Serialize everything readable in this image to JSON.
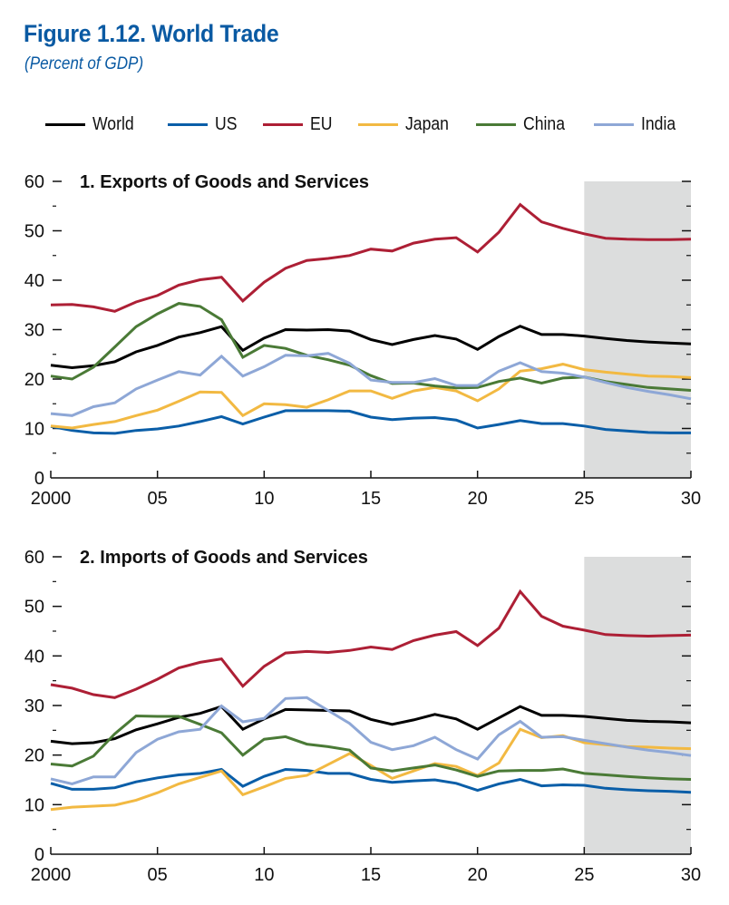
{
  "figure": {
    "title": "Figure 1.12.  World Trade",
    "subtitle": "(Percent of GDP)"
  },
  "legend": [
    {
      "name": "World",
      "color": "#000000"
    },
    {
      "name": "US",
      "color": "#0a5ea8"
    },
    {
      "name": "EU",
      "color": "#ad1f35"
    },
    {
      "name": "Japan",
      "color": "#f2b942"
    },
    {
      "name": "China",
      "color": "#4a7a36"
    },
    {
      "name": "India",
      "color": "#8ea7d6"
    }
  ],
  "projection_shade_color": "#dcdddd",
  "chart_data": [
    {
      "type": "line",
      "title": "1. Exports of Goods and Services",
      "xlabel": "",
      "ylabel": "Percent of GDP",
      "x": [
        2000,
        2001,
        2002,
        2003,
        2004,
        2005,
        2006,
        2007,
        2008,
        2009,
        2010,
        2011,
        2012,
        2013,
        2014,
        2015,
        2016,
        2017,
        2018,
        2019,
        2020,
        2021,
        2022,
        2023,
        2024,
        2025,
        2026,
        2027,
        2028,
        2029,
        2030
      ],
      "xlim": [
        2000,
        2030
      ],
      "ylim": [
        0,
        60
      ],
      "x_ticks": [
        2000,
        2005,
        2010,
        2015,
        2020,
        2025,
        2030
      ],
      "x_tick_labels": [
        "2000",
        "05",
        "10",
        "15",
        "20",
        "25",
        "30"
      ],
      "y_ticks": [
        0,
        10,
        20,
        30,
        40,
        50,
        60
      ],
      "y_tick_labels": [
        "0",
        "10",
        "20",
        "30",
        "40",
        "50",
        "60"
      ],
      "y_minor_ticks": [
        5,
        15,
        25,
        35,
        45,
        55
      ],
      "shaded_range": [
        2025,
        2030
      ],
      "grid": false,
      "legend_position": "top",
      "series": [
        {
          "name": "World",
          "color": "#000000",
          "values": [
            22.8,
            22.3,
            22.7,
            23.5,
            25.5,
            26.8,
            28.5,
            29.4,
            30.6,
            25.8,
            28.3,
            30.0,
            29.9,
            30.0,
            29.7,
            28.0,
            27.0,
            28.0,
            28.8,
            28.1,
            26.0,
            28.6,
            30.7,
            29.0,
            29.0,
            28.7,
            28.2,
            27.8,
            27.5,
            27.3,
            27.1
          ]
        },
        {
          "name": "US",
          "color": "#0a5ea8",
          "values": [
            10.4,
            9.6,
            9.1,
            9.0,
            9.6,
            9.9,
            10.5,
            11.4,
            12.4,
            10.9,
            12.3,
            13.6,
            13.6,
            13.6,
            13.5,
            12.3,
            11.8,
            12.1,
            12.2,
            11.7,
            10.1,
            10.8,
            11.6,
            11.0,
            11.0,
            10.5,
            9.8,
            9.5,
            9.2,
            9.1,
            9.1
          ]
        },
        {
          "name": "EU",
          "color": "#ad1f35",
          "values": [
            35.0,
            35.1,
            34.6,
            33.7,
            35.6,
            36.9,
            39.0,
            40.1,
            40.6,
            35.8,
            39.6,
            42.4,
            44.0,
            44.4,
            45.0,
            46.3,
            45.9,
            47.5,
            48.3,
            48.6,
            45.7,
            49.7,
            55.3,
            51.8,
            50.5,
            49.4,
            48.5,
            48.3,
            48.2,
            48.2,
            48.3
          ]
        },
        {
          "name": "Japan",
          "color": "#f2b942",
          "values": [
            10.5,
            10.1,
            10.8,
            11.4,
            12.6,
            13.7,
            15.5,
            17.4,
            17.3,
            12.6,
            15.0,
            14.8,
            14.3,
            15.8,
            17.6,
            17.6,
            16.1,
            17.6,
            18.3,
            17.6,
            15.6,
            18.0,
            21.6,
            22.1,
            23.0,
            21.9,
            21.4,
            21.0,
            20.6,
            20.5,
            20.3
          ]
        },
        {
          "name": "China",
          "color": "#4a7a36",
          "values": [
            20.6,
            20.0,
            22.4,
            26.5,
            30.6,
            33.2,
            35.3,
            34.7,
            32.0,
            24.4,
            26.8,
            26.2,
            24.8,
            23.9,
            22.8,
            20.7,
            19.1,
            19.2,
            18.6,
            18.2,
            18.3,
            19.5,
            20.2,
            19.2,
            20.2,
            20.4,
            19.5,
            18.9,
            18.3,
            18.0,
            17.7
          ]
        },
        {
          "name": "India",
          "color": "#8ea7d6",
          "values": [
            13.0,
            12.6,
            14.4,
            15.2,
            18.0,
            19.8,
            21.5,
            20.8,
            24.6,
            20.6,
            22.5,
            24.8,
            24.7,
            25.2,
            23.2,
            19.8,
            19.3,
            19.3,
            20.1,
            18.7,
            18.7,
            21.6,
            23.3,
            21.5,
            21.2,
            20.4,
            19.3,
            18.3,
            17.5,
            16.8,
            16.0
          ]
        }
      ]
    },
    {
      "type": "line",
      "title": "2. Imports of Goods and Services",
      "xlabel": "",
      "ylabel": "Percent of GDP",
      "x": [
        2000,
        2001,
        2002,
        2003,
        2004,
        2005,
        2006,
        2007,
        2008,
        2009,
        2010,
        2011,
        2012,
        2013,
        2014,
        2015,
        2016,
        2017,
        2018,
        2019,
        2020,
        2021,
        2022,
        2023,
        2024,
        2025,
        2026,
        2027,
        2028,
        2029,
        2030
      ],
      "xlim": [
        2000,
        2030
      ],
      "ylim": [
        0,
        60
      ],
      "x_ticks": [
        2000,
        2005,
        2010,
        2015,
        2020,
        2025,
        2030
      ],
      "x_tick_labels": [
        "2000",
        "05",
        "10",
        "15",
        "20",
        "25",
        "30"
      ],
      "y_ticks": [
        0,
        10,
        20,
        30,
        40,
        50,
        60
      ],
      "y_tick_labels": [
        "0",
        "10",
        "20",
        "30",
        "40",
        "50",
        "60"
      ],
      "y_minor_ticks": [
        5,
        15,
        25,
        35,
        45,
        55
      ],
      "shaded_range": [
        2025,
        2030
      ],
      "grid": false,
      "legend_position": "top",
      "series": [
        {
          "name": "World",
          "color": "#000000",
          "values": [
            22.8,
            22.3,
            22.5,
            23.3,
            25.1,
            26.3,
            27.6,
            28.4,
            29.8,
            25.2,
            27.3,
            29.2,
            29.1,
            29.0,
            28.9,
            27.2,
            26.2,
            27.1,
            28.2,
            27.3,
            25.2,
            27.5,
            29.8,
            28.0,
            28.0,
            27.8,
            27.4,
            27.0,
            26.8,
            26.7,
            26.5
          ]
        },
        {
          "name": "US",
          "color": "#0a5ea8",
          "values": [
            14.3,
            13.1,
            13.1,
            13.4,
            14.6,
            15.4,
            16.0,
            16.3,
            17.1,
            13.7,
            15.7,
            17.1,
            16.9,
            16.3,
            16.3,
            15.1,
            14.5,
            14.8,
            15.0,
            14.3,
            12.9,
            14.2,
            15.1,
            13.8,
            14.0,
            13.9,
            13.3,
            13.0,
            12.8,
            12.7,
            12.5
          ]
        },
        {
          "name": "EU",
          "color": "#ad1f35",
          "values": [
            34.2,
            33.5,
            32.2,
            31.6,
            33.3,
            35.3,
            37.6,
            38.7,
            39.4,
            33.9,
            37.9,
            40.6,
            40.9,
            40.7,
            41.1,
            41.8,
            41.3,
            43.1,
            44.2,
            44.9,
            42.1,
            45.6,
            53.0,
            48.0,
            46.0,
            45.2,
            44.3,
            44.1,
            44.0,
            44.1,
            44.2
          ]
        },
        {
          "name": "Japan",
          "color": "#f2b942",
          "values": [
            9.0,
            9.5,
            9.7,
            9.9,
            10.9,
            12.4,
            14.2,
            15.5,
            16.8,
            12.0,
            13.6,
            15.3,
            15.9,
            18.1,
            20.3,
            17.9,
            15.3,
            16.8,
            18.3,
            17.7,
            15.9,
            18.4,
            25.2,
            23.5,
            23.9,
            22.5,
            22.1,
            21.7,
            21.6,
            21.4,
            21.3
          ]
        },
        {
          "name": "China",
          "color": "#4a7a36",
          "values": [
            18.2,
            17.8,
            19.8,
            24.3,
            27.9,
            27.8,
            27.8,
            26.2,
            24.5,
            20.0,
            23.2,
            23.7,
            22.2,
            21.7,
            21.0,
            17.4,
            16.8,
            17.4,
            18.0,
            17.0,
            15.7,
            16.8,
            16.9,
            16.9,
            17.2,
            16.3,
            16.0,
            15.7,
            15.4,
            15.2,
            15.1
          ]
        },
        {
          "name": "India",
          "color": "#8ea7d6",
          "values": [
            15.2,
            14.2,
            15.6,
            15.6,
            20.5,
            23.2,
            24.7,
            25.2,
            29.9,
            26.7,
            27.4,
            31.4,
            31.6,
            29.0,
            26.4,
            22.6,
            21.1,
            21.9,
            23.6,
            21.1,
            19.2,
            24.1,
            26.8,
            23.6,
            23.7,
            23.0,
            22.3,
            21.6,
            21.0,
            20.5,
            19.9
          ]
        }
      ]
    }
  ]
}
